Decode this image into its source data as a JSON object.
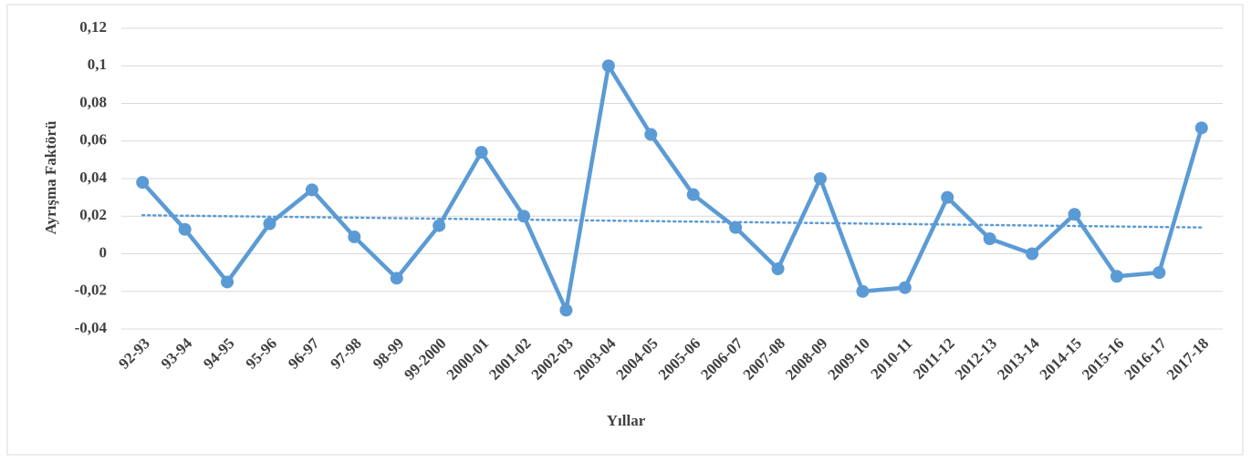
{
  "chart_data": {
    "type": "line",
    "x_label": "Yıllar",
    "y_label": "Ayrışma Faktörü",
    "categories": [
      "92-93",
      "93-94",
      "94-95",
      "95-96",
      "96-97",
      "97-98",
      "98-99",
      "99-2000",
      "2000-01",
      "2001-02",
      "2002-03",
      "2003-04",
      "2004-05",
      "2005-06",
      "2006-07",
      "2007-08",
      "2008-09",
      "2009-10",
      "2010-11",
      "2011-12",
      "2012-13",
      "2013-14",
      "2014-15",
      "2015-16",
      "2016-17",
      "2017-18"
    ],
    "series": [
      {
        "color": "#5b9bd5",
        "values": [
          0.038,
          0.013,
          -0.015,
          0.016,
          0.034,
          0.009,
          -0.013,
          0.015,
          0.054,
          0.02,
          -0.03,
          0.1,
          0.0635,
          0.0315,
          0.014,
          -0.008,
          0.04,
          -0.02,
          -0.018,
          0.03,
          0.008,
          0,
          0.021,
          -0.012,
          -0.01,
          0.067
        ]
      }
    ],
    "trendline": {
      "color": "#5b9bd5",
      "values": [
        0.0205,
        0.014
      ]
    },
    "ylim": [
      -0.04,
      0.12
    ],
    "yticks": [
      {
        "value": -0.04,
        "label": "-0,04"
      },
      {
        "value": -0.02,
        "label": "-0,02"
      },
      0,
      {
        "value": 0.02,
        "label": "0,02"
      },
      {
        "value": 0.04,
        "label": "0,04"
      },
      {
        "value": 0.06,
        "label": "0,06"
      },
      {
        "value": 0.08,
        "label": "0,08"
      },
      {
        "value": 0.1,
        "label": "0,1"
      },
      {
        "value": 0.12,
        "label": "0,12"
      }
    ],
    "grid": true
  }
}
